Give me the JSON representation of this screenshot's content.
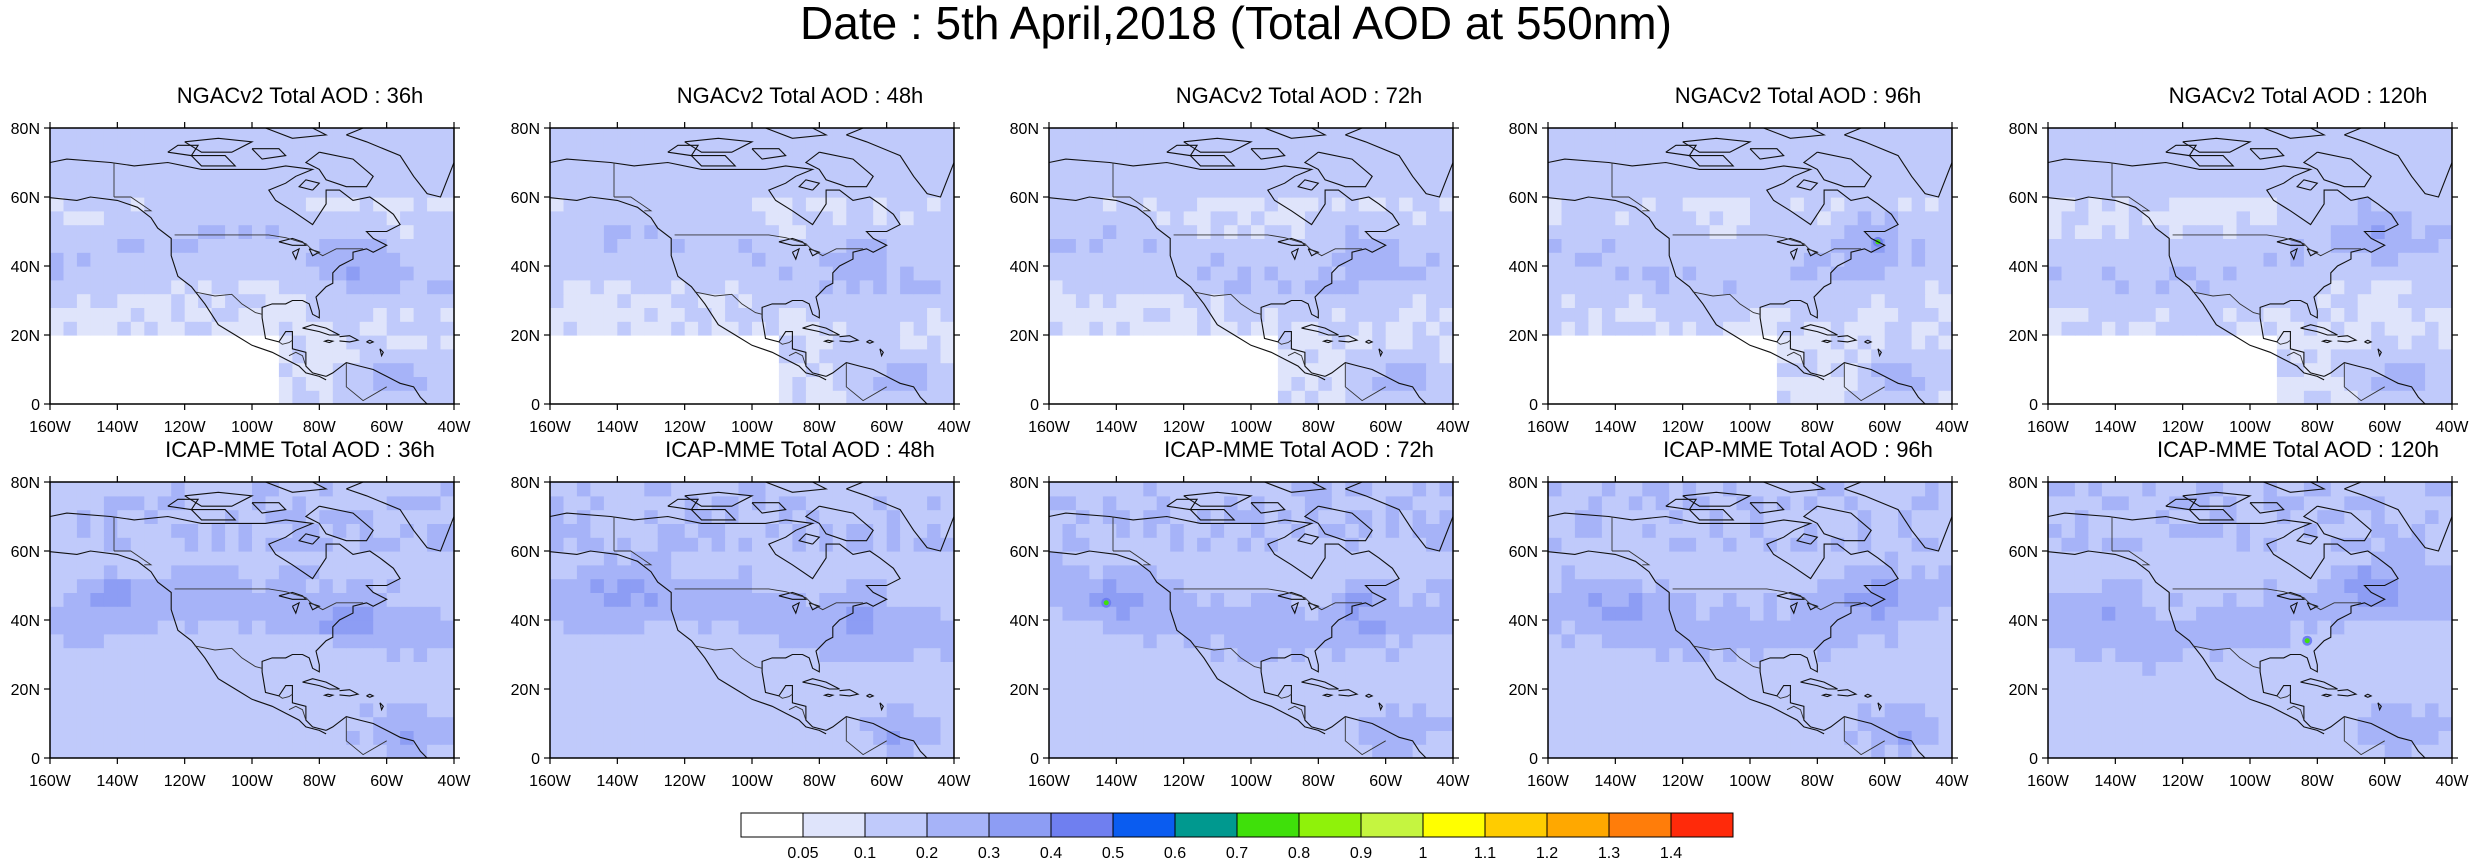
{
  "title": "Date : 5th April,2018 (Total AOD at 550nm)",
  "lon_ticks": [
    "160W",
    "140W",
    "120W",
    "100W",
    "80W",
    "60W",
    "40W"
  ],
  "lat_ticks": [
    "0",
    "20N",
    "40N",
    "60N",
    "80N"
  ],
  "panels": [
    {
      "title": "NGACv2 Total AOD : 36h"
    },
    {
      "title": "NGACv2 Total AOD : 48h"
    },
    {
      "title": "NGACv2 Total AOD : 72h"
    },
    {
      "title": "NGACv2 Total AOD : 96h"
    },
    {
      "title": "NGACv2 Total AOD : 120h"
    },
    {
      "title": "ICAP-MME Total AOD : 36h"
    },
    {
      "title": "ICAP-MME Total AOD : 48h"
    },
    {
      "title": "ICAP-MME Total AOD : 72h"
    },
    {
      "title": "ICAP-MME Total AOD : 96h"
    },
    {
      "title": "ICAP-MME Total AOD : 120h"
    }
  ],
  "colorbar": {
    "labels": [
      "0.05",
      "0.1",
      "0.2",
      "0.3",
      "0.4",
      "0.5",
      "0.6",
      "0.7",
      "0.8",
      "0.9",
      "1",
      "1.1",
      "1.2",
      "1.3",
      "1.4"
    ],
    "colors": [
      "#ffffff",
      "#dfe4fb",
      "#c0cafb",
      "#a6b3f8",
      "#8d9df4",
      "#6f7ff0",
      "#0a5cf0",
      "#00998f",
      "#3fe00a",
      "#8ff20a",
      "#c5f540",
      "#ffff00",
      "#ffcc00",
      "#ffa800",
      "#ff7d0a",
      "#ff2a0a"
    ]
  }
}
